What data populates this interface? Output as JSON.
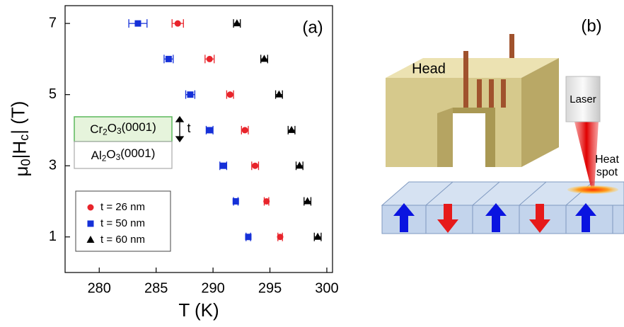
{
  "chart_data": {
    "type": "scatter",
    "panel_label": "(a)",
    "xlabel": "T (K)",
    "ylabel": [
      "μ",
      "0",
      "|H",
      "c",
      "| (T)"
    ],
    "xlim": [
      277,
      300.5
    ],
    "xticks": [
      280,
      285,
      290,
      295,
      300
    ],
    "ylim": [
      0,
      7.5
    ],
    "yticks": [
      1,
      3,
      5,
      7
    ],
    "legend": "lower left",
    "series": [
      {
        "name": "t = 26 nm",
        "color": "#e8242b",
        "marker": "circle",
        "x": [
          286.9,
          289.7,
          291.5,
          292.8,
          293.7,
          294.7,
          295.9
        ],
        "xerr": [
          0.5,
          0.4,
          0.3,
          0.3,
          0.3,
          0.2,
          0.2
        ],
        "values": [
          7,
          6,
          5,
          4,
          3,
          2,
          1
        ]
      },
      {
        "name": "t = 50 nm",
        "color": "#1530d8",
        "marker": "square",
        "x": [
          283.4,
          286.1,
          288.0,
          289.7,
          290.9,
          292.0,
          293.1
        ],
        "xerr": [
          0.8,
          0.4,
          0.4,
          0.3,
          0.3,
          0.2,
          0.2
        ],
        "values": [
          7,
          6,
          5,
          4,
          3,
          2,
          1
        ]
      },
      {
        "name": "t = 60 nm",
        "color": "#000000",
        "marker": "triangle",
        "x": [
          292.1,
          294.5,
          295.8,
          296.9,
          297.6,
          298.3,
          299.2
        ],
        "xerr": [
          0.3,
          0.3,
          0.3,
          0.3,
          0.3,
          0.3,
          0.3
        ],
        "values": [
          7,
          6,
          5,
          4,
          3,
          2,
          1
        ]
      }
    ],
    "inset": {
      "top_layer": [
        "Cr",
        "2",
        "O",
        "3",
        "(0001)"
      ],
      "bottom_layer": [
        "Al",
        "2",
        "O",
        "3",
        "(0001)"
      ],
      "thickness_label": "t"
    }
  },
  "diagram": {
    "panel_label": "(b)",
    "head": "Head",
    "laser": "Laser",
    "heat_spot": [
      "Heat",
      "spot"
    ]
  }
}
